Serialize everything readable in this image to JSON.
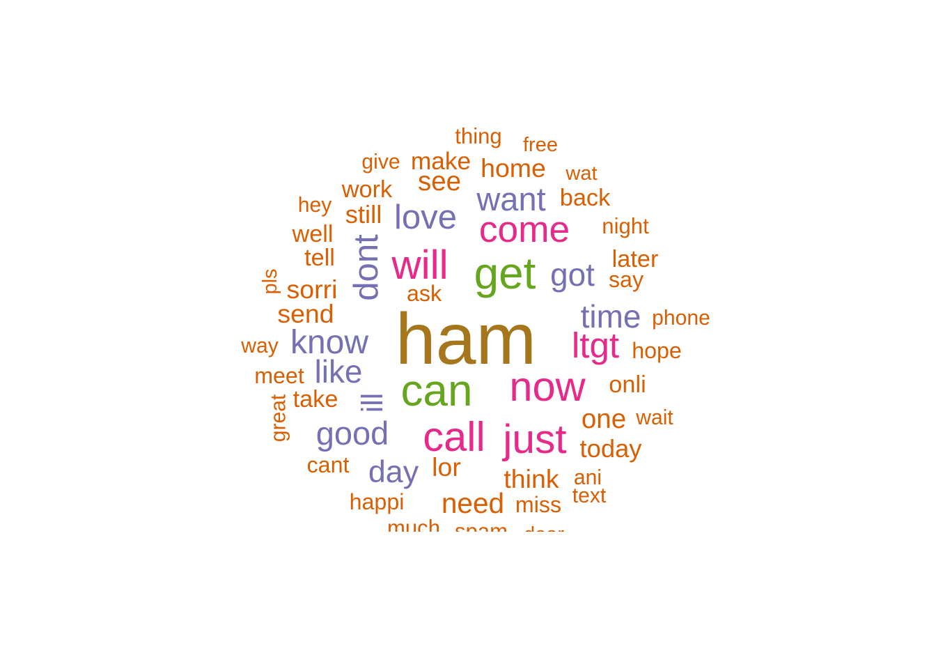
{
  "chart_data": {
    "type": "wordcloud",
    "title": "",
    "palette": {
      "brown": "#a6761d",
      "green": "#66a61e",
      "pink": "#e7298a",
      "purple": "#7570b3",
      "orange": "#d95f02"
    },
    "words": [
      {
        "text": "ham",
        "freq": 100,
        "color": "brown"
      },
      {
        "text": "can",
        "freq": 62,
        "color": "green"
      },
      {
        "text": "get",
        "freq": 62,
        "color": "green"
      },
      {
        "text": "now",
        "freq": 58,
        "color": "pink"
      },
      {
        "text": "call",
        "freq": 58,
        "color": "pink"
      },
      {
        "text": "will",
        "freq": 57,
        "color": "pink"
      },
      {
        "text": "just",
        "freq": 57,
        "color": "pink"
      },
      {
        "text": "come",
        "freq": 52,
        "color": "pink"
      },
      {
        "text": "ltgt",
        "freq": 50,
        "color": "pink"
      },
      {
        "text": "dont",
        "freq": 48,
        "color": "purple"
      },
      {
        "text": "love",
        "freq": 48,
        "color": "purple"
      },
      {
        "text": "know",
        "freq": 47,
        "color": "purple"
      },
      {
        "text": "want",
        "freq": 46,
        "color": "purple"
      },
      {
        "text": "good",
        "freq": 46,
        "color": "purple"
      },
      {
        "text": "time",
        "freq": 45,
        "color": "purple"
      },
      {
        "text": "like",
        "freq": 45,
        "color": "purple"
      },
      {
        "text": "got",
        "freq": 45,
        "color": "purple"
      },
      {
        "text": "day",
        "freq": 44,
        "color": "purple"
      },
      {
        "text": "ill",
        "freq": 42,
        "color": "purple"
      },
      {
        "text": "need",
        "freq": 40,
        "color": "orange"
      },
      {
        "text": "see",
        "freq": 38,
        "color": "orange"
      },
      {
        "text": "one",
        "freq": 38,
        "color": "orange"
      },
      {
        "text": "home",
        "freq": 37,
        "color": "orange"
      },
      {
        "text": "think",
        "freq": 37,
        "color": "orange"
      },
      {
        "text": "lor",
        "freq": 37,
        "color": "orange"
      },
      {
        "text": "send",
        "freq": 37,
        "color": "orange"
      },
      {
        "text": "sorri",
        "freq": 37,
        "color": "orange"
      },
      {
        "text": "still",
        "freq": 36,
        "color": "orange"
      },
      {
        "text": "today",
        "freq": 36,
        "color": "orange"
      },
      {
        "text": "make",
        "freq": 35,
        "color": "orange"
      },
      {
        "text": "work",
        "freq": 34,
        "color": "orange"
      },
      {
        "text": "back",
        "freq": 34,
        "color": "orange"
      },
      {
        "text": "tell",
        "freq": 34,
        "color": "orange"
      },
      {
        "text": "later",
        "freq": 34,
        "color": "orange"
      },
      {
        "text": "well",
        "freq": 34,
        "color": "orange"
      },
      {
        "text": "onli",
        "freq": 34,
        "color": "orange"
      },
      {
        "text": "take",
        "freq": 34,
        "color": "orange"
      },
      {
        "text": "ask",
        "freq": 32,
        "color": "orange"
      },
      {
        "text": "say",
        "freq": 32,
        "color": "orange"
      },
      {
        "text": "hope",
        "freq": 32,
        "color": "orange"
      },
      {
        "text": "meet",
        "freq": 32,
        "color": "orange"
      },
      {
        "text": "cant",
        "freq": 32,
        "color": "orange"
      },
      {
        "text": "happi",
        "freq": 32,
        "color": "orange"
      },
      {
        "text": "miss",
        "freq": 32,
        "color": "orange"
      },
      {
        "text": "thing",
        "freq": 31,
        "color": "orange"
      },
      {
        "text": "night",
        "freq": 31,
        "color": "orange"
      },
      {
        "text": "much",
        "freq": 31,
        "color": "orange"
      },
      {
        "text": "spam",
        "freq": 31,
        "color": "orange"
      },
      {
        "text": "give",
        "freq": 30,
        "color": "orange"
      },
      {
        "text": "hey",
        "freq": 30,
        "color": "orange"
      },
      {
        "text": "phone",
        "freq": 30,
        "color": "orange"
      },
      {
        "text": "way",
        "freq": 30,
        "color": "orange"
      },
      {
        "text": "wait",
        "freq": 30,
        "color": "orange"
      },
      {
        "text": "ani",
        "freq": 30,
        "color": "orange"
      },
      {
        "text": "text",
        "freq": 30,
        "color": "orange"
      },
      {
        "text": "great",
        "freq": 30,
        "color": "orange"
      },
      {
        "text": "wat",
        "freq": 29,
        "color": "orange"
      },
      {
        "text": "free",
        "freq": 29,
        "color": "orange"
      },
      {
        "text": "pls",
        "freq": 29,
        "color": "orange"
      },
      {
        "text": "dear",
        "freq": 29,
        "color": "orange"
      }
    ]
  }
}
